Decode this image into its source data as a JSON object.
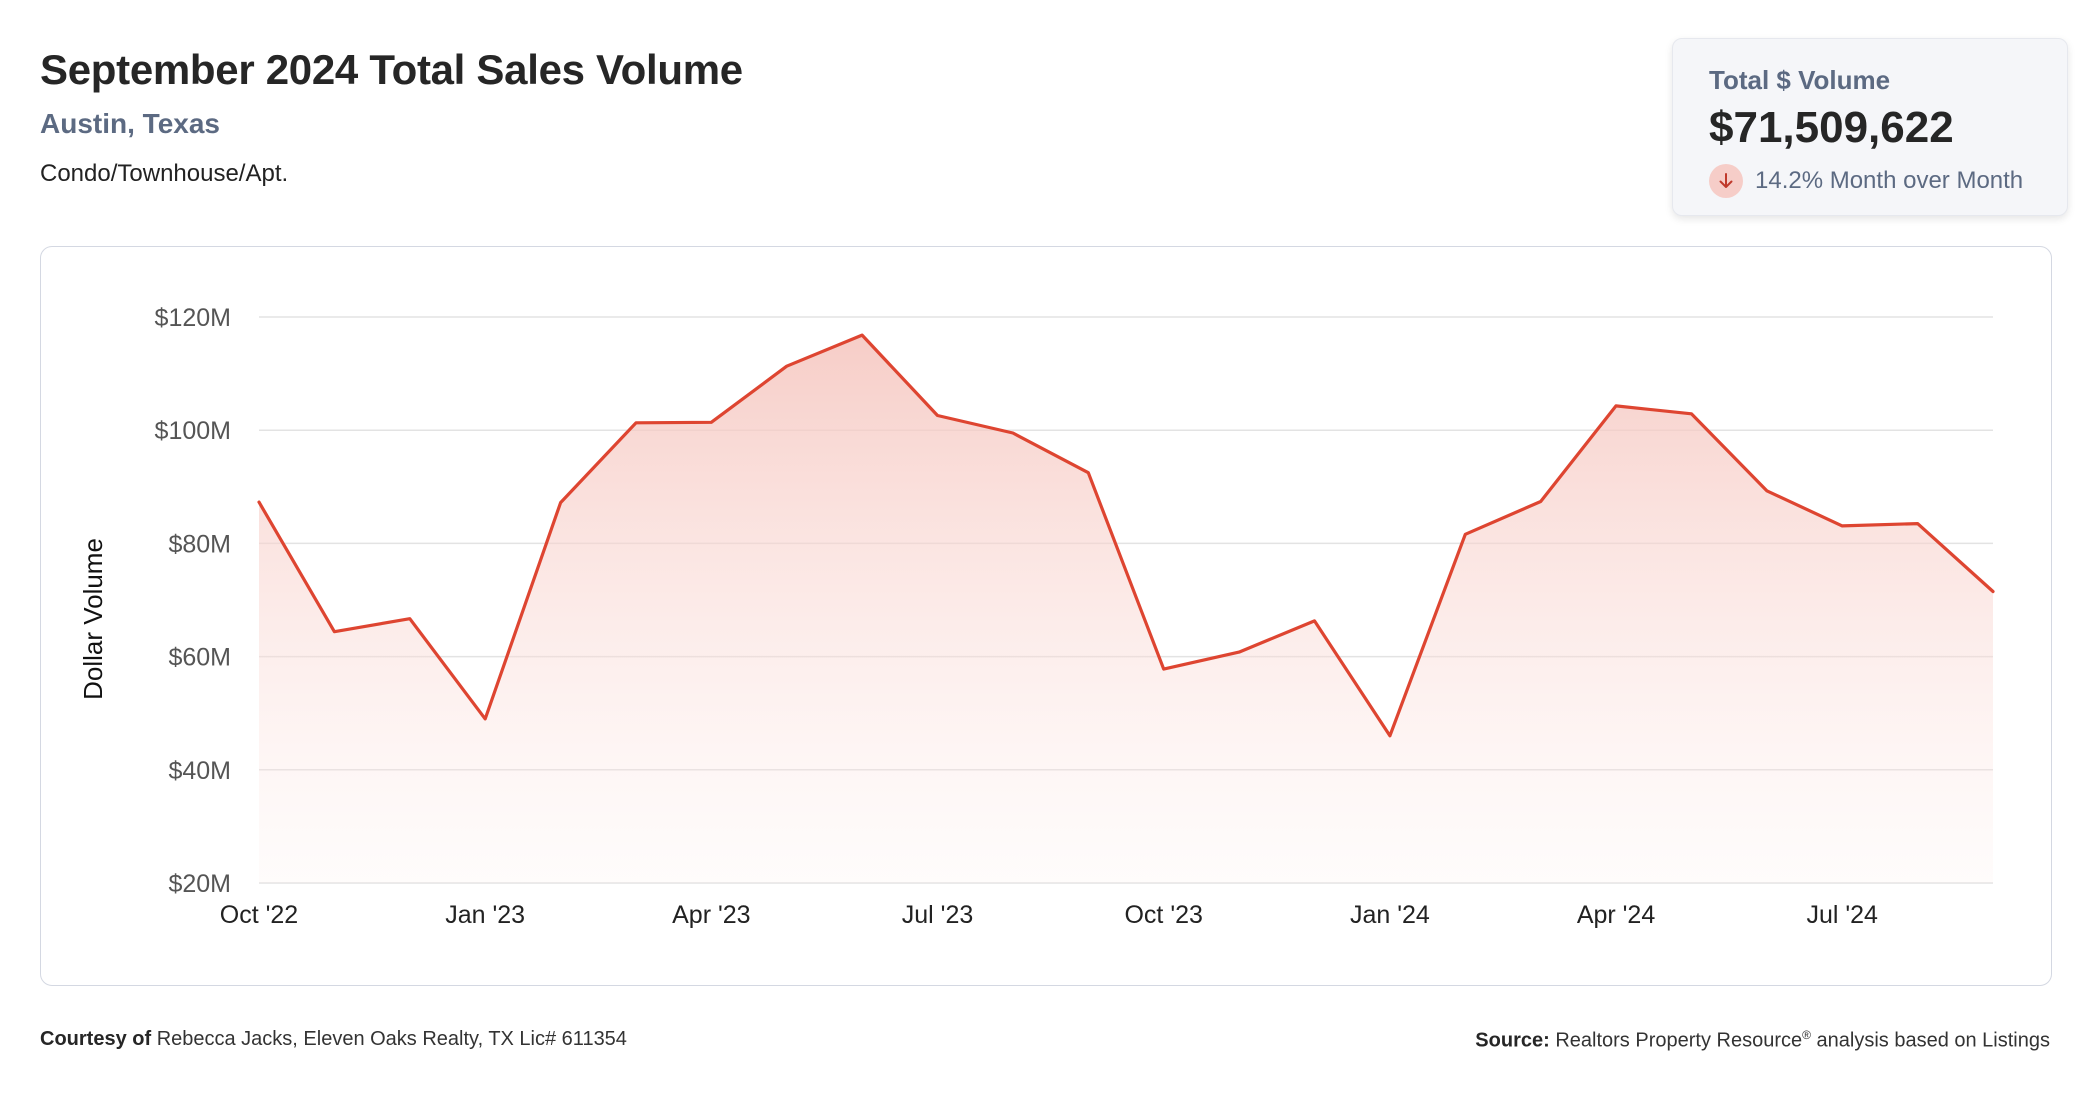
{
  "header": {
    "title": "September 2024 Total Sales Volume",
    "location": "Austin, Texas",
    "property_type": "Condo/Townhouse/Apt."
  },
  "stat_card": {
    "label": "Total $ Volume",
    "value": "$71,509,622",
    "change_text": "14.2% Month over Month",
    "change_direction": "down",
    "change_icon": "arrow-down-icon"
  },
  "footer": {
    "courtesy_label": "Courtesy of",
    "courtesy_text": "Rebecca Jacks, Eleven Oaks Realty, TX Lic# 611354",
    "source_label": "Source:",
    "source_text": "Realtors Property Resource",
    "source_mark": "®",
    "source_suffix": "analysis based on Listings"
  },
  "colors": {
    "line": "#de4531",
    "fill_top": "#f5c4bd",
    "grid": "#e3e3e3",
    "badge_bg": "#f6cdc8",
    "muted_text": "#5c6a82"
  },
  "chart_data": {
    "type": "area",
    "title": "",
    "xlabel": "",
    "ylabel": "Dollar Volume",
    "ylim": [
      20,
      120
    ],
    "y_unit": "$M",
    "yticks": [
      20,
      40,
      60,
      80,
      100,
      120
    ],
    "ytick_labels": [
      "$20M",
      "$40M",
      "$60M",
      "$80M",
      "$100M",
      "$120M"
    ],
    "xtick_labels": [
      "Oct '22",
      "Jan '23",
      "Apr '23",
      "Jul '23",
      "Oct '23",
      "Jan '24",
      "Apr '24",
      "Jul '24"
    ],
    "xtick_index": [
      0,
      3,
      6,
      9,
      12,
      15,
      18,
      21
    ],
    "categories": [
      "Oct '22",
      "Nov '22",
      "Dec '22",
      "Jan '23",
      "Feb '23",
      "Mar '23",
      "Apr '23",
      "May '23",
      "Jun '23",
      "Jul '23",
      "Aug '23",
      "Sep '23",
      "Oct '23",
      "Nov '23",
      "Dec '23",
      "Jan '24",
      "Feb '24",
      "Mar '24",
      "Apr '24",
      "May '24",
      "Jun '24",
      "Jul '24",
      "Aug '24",
      "Sep '24"
    ],
    "series": [
      {
        "values": [
          87.3,
          64.4,
          66.7,
          49.0,
          87.2,
          101.3,
          101.4,
          111.3,
          116.8,
          102.6,
          99.5,
          92.5,
          57.8,
          60.8,
          66.3,
          46.0,
          81.6,
          87.4,
          104.3,
          102.9,
          89.3,
          83.1,
          83.5,
          71.5
        ]
      }
    ],
    "grid": true,
    "legend": "none"
  }
}
